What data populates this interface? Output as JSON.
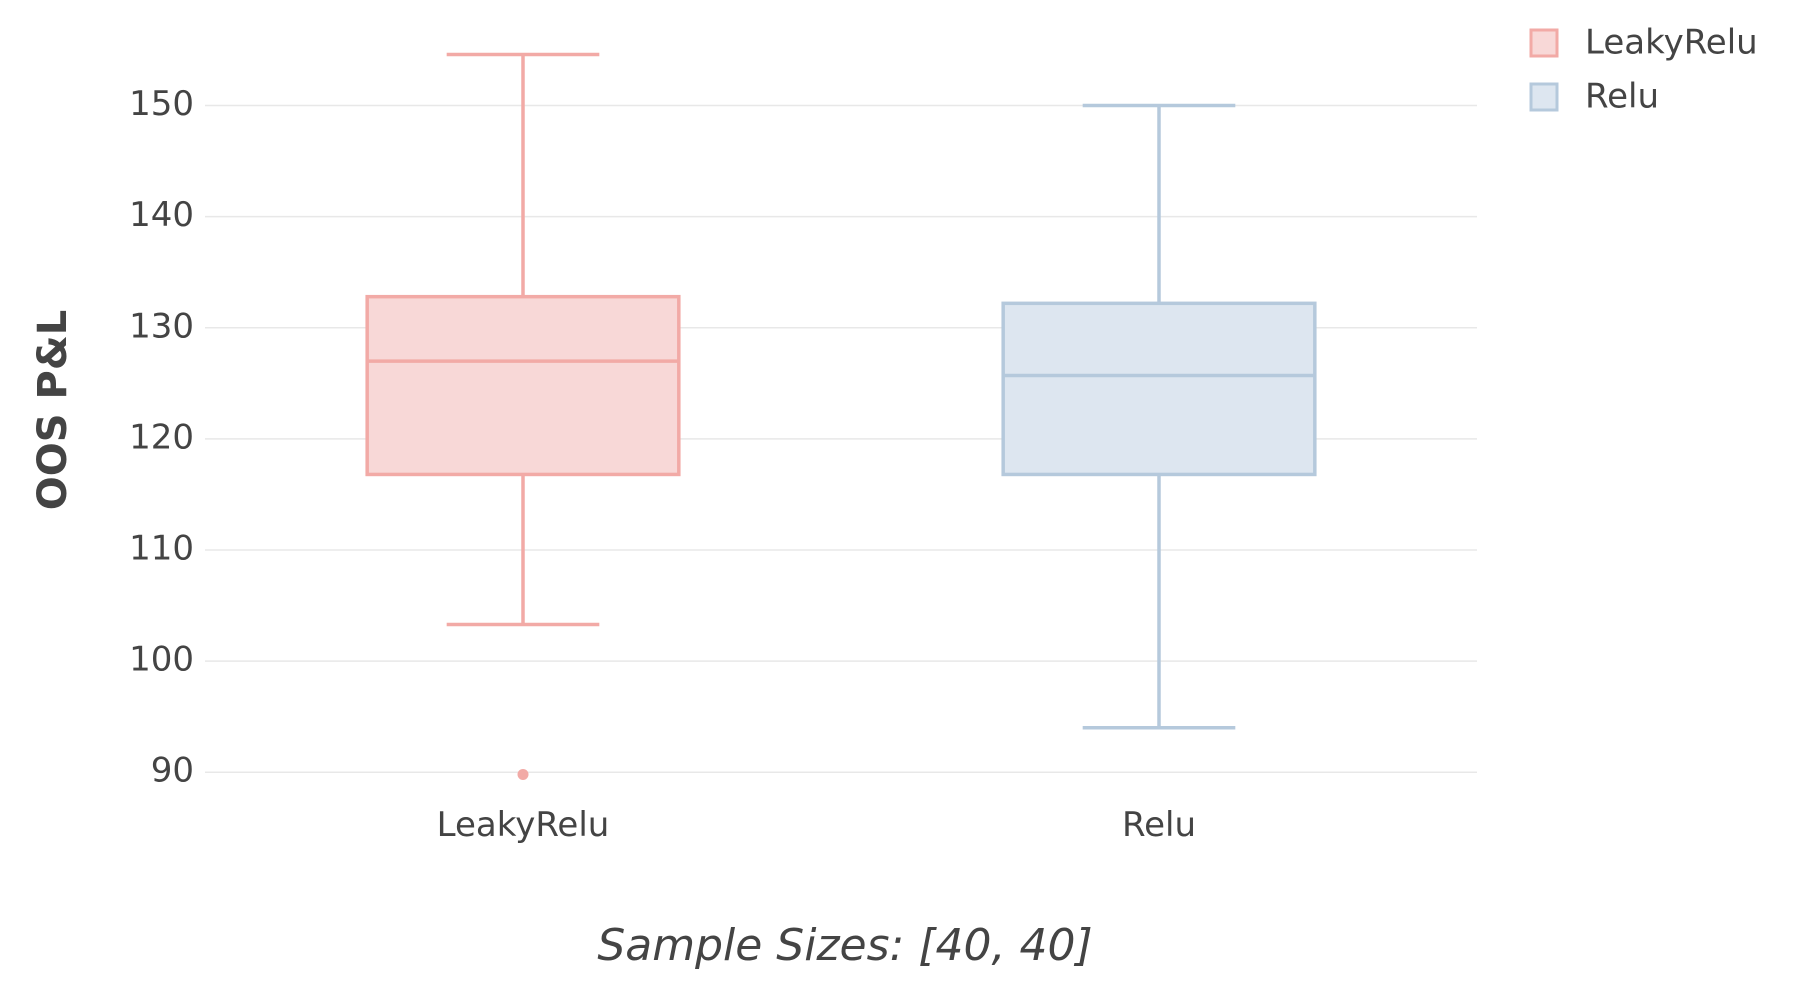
{
  "chart_data": {
    "type": "box",
    "title": "",
    "xlabel": "Sample Sizes: [40, 40]",
    "ylabel": "OOS P&L",
    "ylim": [
      87.5,
      156.8
    ],
    "yticks": [
      90,
      100,
      110,
      120,
      130,
      140,
      150
    ],
    "grid": true,
    "legend_position": "top-right",
    "categories": [
      "LeakyRelu",
      "Relu"
    ],
    "series": [
      {
        "name": "LeakyRelu",
        "category": "LeakyRelu",
        "whisker_low": 103.3,
        "q1": 116.8,
        "median": 127.0,
        "q3": 132.8,
        "whisker_high": 154.6,
        "outliers": [
          89.8
        ],
        "color": "#f2aaa6",
        "fill": "#f8d8d7"
      },
      {
        "name": "Relu",
        "category": "Relu",
        "whisker_low": 94.0,
        "q1": 116.8,
        "median": 125.7,
        "q3": 132.2,
        "whisker_high": 150.0,
        "outliers": [],
        "color": "#b5c9dc",
        "fill": "#dde6f0"
      }
    ]
  }
}
